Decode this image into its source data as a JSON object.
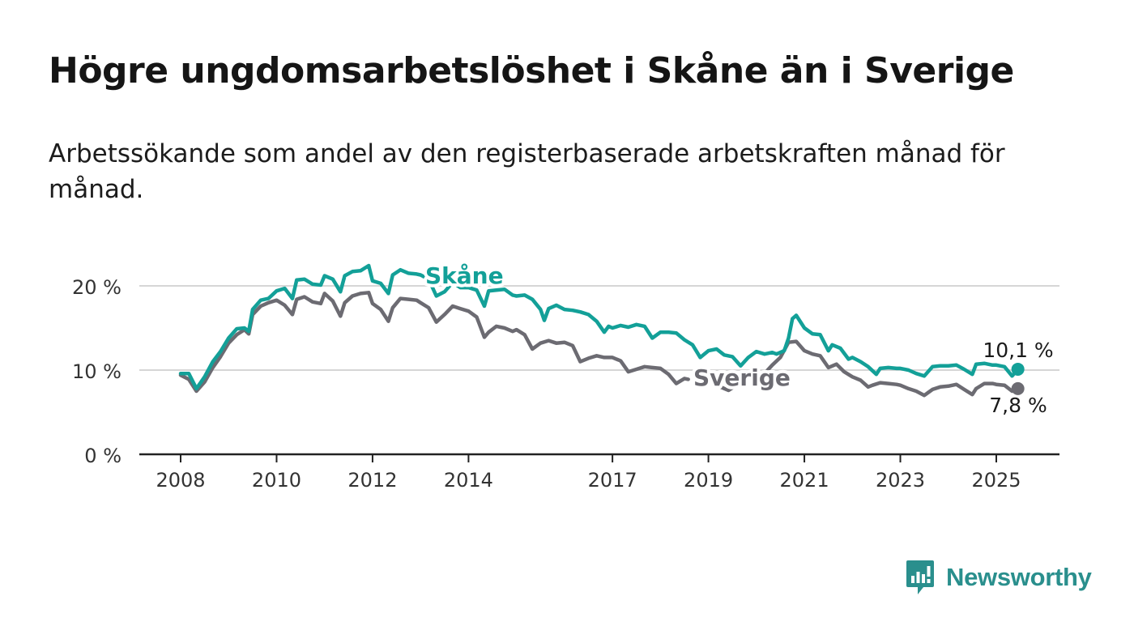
{
  "header": {
    "title": "Högre ungdomsarbetslöshet i Skåne än i Sverige",
    "subtitle": "Arbetssökande som andel av den registerbaserade arbetskraften månad för månad."
  },
  "brand": {
    "name": "Newsworthy",
    "color": "#2a8f8d",
    "icon": "bar-chart-speech-bubble-icon"
  },
  "chart_data": {
    "type": "line",
    "ylim": [
      0,
      24
    ],
    "y_ticks": [
      0,
      10,
      20
    ],
    "y_tick_labels": [
      "0 %",
      "10 %",
      "20 %"
    ],
    "x_ticks": [
      2008,
      2010,
      2012,
      2014,
      2017,
      2019,
      2021,
      2023,
      2025
    ],
    "x_tick_labels": [
      "2008",
      "2010",
      "2012",
      "2014",
      "2017",
      "2019",
      "2021",
      "2023",
      "2025"
    ],
    "grid": true,
    "series": [
      {
        "name": "Skåne",
        "color": "#13a098",
        "last_label": "10,1 %",
        "points": [
          [
            2008.0,
            9.6
          ],
          [
            2008.17,
            9.6
          ],
          [
            2008.33,
            7.8
          ],
          [
            2008.5,
            9.2
          ],
          [
            2008.67,
            11.0
          ],
          [
            2008.83,
            12.2
          ],
          [
            2009.0,
            13.8
          ],
          [
            2009.17,
            14.9
          ],
          [
            2009.33,
            15.0
          ],
          [
            2009.42,
            14.6
          ],
          [
            2009.5,
            17.2
          ],
          [
            2009.67,
            18.3
          ],
          [
            2009.83,
            18.5
          ],
          [
            2010.0,
            19.4
          ],
          [
            2010.17,
            19.7
          ],
          [
            2010.33,
            18.5
          ],
          [
            2010.42,
            20.7
          ],
          [
            2010.58,
            20.8
          ],
          [
            2010.75,
            20.2
          ],
          [
            2010.92,
            20.1
          ],
          [
            2011.0,
            21.2
          ],
          [
            2011.17,
            20.8
          ],
          [
            2011.33,
            19.3
          ],
          [
            2011.42,
            21.2
          ],
          [
            2011.58,
            21.7
          ],
          [
            2011.75,
            21.8
          ],
          [
            2011.92,
            22.4
          ],
          [
            2012.0,
            20.6
          ],
          [
            2012.17,
            20.3
          ],
          [
            2012.33,
            19.1
          ],
          [
            2012.42,
            21.3
          ],
          [
            2012.58,
            21.9
          ],
          [
            2012.75,
            21.5
          ],
          [
            2012.92,
            21.4
          ],
          [
            2013.0,
            21.3
          ],
          [
            2013.17,
            20.8
          ],
          [
            2013.33,
            18.8
          ],
          [
            2013.5,
            19.3
          ],
          [
            2013.67,
            20.4
          ],
          [
            2013.83,
            19.8
          ],
          [
            2014.0,
            19.8
          ],
          [
            2014.17,
            19.5
          ],
          [
            2014.33,
            17.6
          ],
          [
            2014.42,
            19.4
          ],
          [
            2014.58,
            19.5
          ],
          [
            2014.75,
            19.6
          ],
          [
            2014.92,
            18.9
          ],
          [
            2015.0,
            18.8
          ],
          [
            2015.17,
            18.9
          ],
          [
            2015.33,
            18.4
          ],
          [
            2015.5,
            17.2
          ],
          [
            2015.58,
            15.9
          ],
          [
            2015.67,
            17.3
          ],
          [
            2015.83,
            17.7
          ],
          [
            2016.0,
            17.2
          ],
          [
            2016.17,
            17.1
          ],
          [
            2016.33,
            16.9
          ],
          [
            2016.5,
            16.6
          ],
          [
            2016.67,
            15.8
          ],
          [
            2016.83,
            14.5
          ],
          [
            2016.92,
            15.2
          ],
          [
            2017.0,
            15.0
          ],
          [
            2017.17,
            15.3
          ],
          [
            2017.33,
            15.1
          ],
          [
            2017.5,
            15.4
          ],
          [
            2017.67,
            15.2
          ],
          [
            2017.83,
            13.8
          ],
          [
            2018.0,
            14.5
          ],
          [
            2018.17,
            14.5
          ],
          [
            2018.33,
            14.4
          ],
          [
            2018.5,
            13.6
          ],
          [
            2018.67,
            13.0
          ],
          [
            2018.83,
            11.5
          ],
          [
            2019.0,
            12.3
          ],
          [
            2019.17,
            12.5
          ],
          [
            2019.33,
            11.8
          ],
          [
            2019.5,
            11.6
          ],
          [
            2019.67,
            10.5
          ],
          [
            2019.83,
            11.5
          ],
          [
            2020.0,
            12.2
          ],
          [
            2020.17,
            11.9
          ],
          [
            2020.33,
            12.1
          ],
          [
            2020.42,
            11.9
          ],
          [
            2020.58,
            12.3
          ],
          [
            2020.67,
            13.8
          ],
          [
            2020.75,
            16.1
          ],
          [
            2020.83,
            16.5
          ],
          [
            2021.0,
            15.0
          ],
          [
            2021.17,
            14.3
          ],
          [
            2021.33,
            14.2
          ],
          [
            2021.5,
            12.3
          ],
          [
            2021.58,
            13.0
          ],
          [
            2021.75,
            12.6
          ],
          [
            2021.92,
            11.3
          ],
          [
            2022.0,
            11.5
          ],
          [
            2022.17,
            11.0
          ],
          [
            2022.33,
            10.4
          ],
          [
            2022.5,
            9.5
          ],
          [
            2022.58,
            10.2
          ],
          [
            2022.75,
            10.3
          ],
          [
            2022.92,
            10.2
          ],
          [
            2023.0,
            10.2
          ],
          [
            2023.17,
            10.0
          ],
          [
            2023.33,
            9.6
          ],
          [
            2023.5,
            9.3
          ],
          [
            2023.67,
            10.4
          ],
          [
            2023.83,
            10.5
          ],
          [
            2024.0,
            10.5
          ],
          [
            2024.17,
            10.6
          ],
          [
            2024.33,
            10.1
          ],
          [
            2024.5,
            9.5
          ],
          [
            2024.58,
            10.7
          ],
          [
            2024.75,
            10.8
          ],
          [
            2024.92,
            10.6
          ],
          [
            2025.0,
            10.6
          ],
          [
            2025.17,
            10.4
          ],
          [
            2025.33,
            9.3
          ],
          [
            2025.45,
            10.1
          ]
        ]
      },
      {
        "name": "Sverige",
        "color": "#6c6b72",
        "last_label": "7,8 %",
        "points": [
          [
            2008.0,
            9.4
          ],
          [
            2008.17,
            8.9
          ],
          [
            2008.33,
            7.5
          ],
          [
            2008.5,
            8.6
          ],
          [
            2008.67,
            10.3
          ],
          [
            2008.83,
            11.6
          ],
          [
            2009.0,
            13.2
          ],
          [
            2009.17,
            14.2
          ],
          [
            2009.33,
            14.8
          ],
          [
            2009.42,
            14.3
          ],
          [
            2009.5,
            16.6
          ],
          [
            2009.67,
            17.6
          ],
          [
            2009.83,
            18.0
          ],
          [
            2010.0,
            18.3
          ],
          [
            2010.17,
            17.7
          ],
          [
            2010.33,
            16.6
          ],
          [
            2010.42,
            18.4
          ],
          [
            2010.58,
            18.7
          ],
          [
            2010.75,
            18.1
          ],
          [
            2010.92,
            17.9
          ],
          [
            2011.0,
            19.1
          ],
          [
            2011.17,
            18.2
          ],
          [
            2011.33,
            16.4
          ],
          [
            2011.42,
            18.0
          ],
          [
            2011.58,
            18.8
          ],
          [
            2011.75,
            19.1
          ],
          [
            2011.92,
            19.2
          ],
          [
            2012.0,
            17.9
          ],
          [
            2012.17,
            17.2
          ],
          [
            2012.33,
            15.8
          ],
          [
            2012.42,
            17.4
          ],
          [
            2012.58,
            18.5
          ],
          [
            2012.75,
            18.4
          ],
          [
            2012.92,
            18.3
          ],
          [
            2013.0,
            18.0
          ],
          [
            2013.17,
            17.4
          ],
          [
            2013.33,
            15.7
          ],
          [
            2013.5,
            16.6
          ],
          [
            2013.67,
            17.6
          ],
          [
            2013.83,
            17.3
          ],
          [
            2014.0,
            17.0
          ],
          [
            2014.17,
            16.3
          ],
          [
            2014.33,
            13.9
          ],
          [
            2014.42,
            14.5
          ],
          [
            2014.58,
            15.2
          ],
          [
            2014.75,
            15.0
          ],
          [
            2014.92,
            14.6
          ],
          [
            2015.0,
            14.8
          ],
          [
            2015.17,
            14.2
          ],
          [
            2015.33,
            12.5
          ],
          [
            2015.5,
            13.2
          ],
          [
            2015.67,
            13.5
          ],
          [
            2015.83,
            13.2
          ],
          [
            2016.0,
            13.3
          ],
          [
            2016.17,
            12.9
          ],
          [
            2016.33,
            11.0
          ],
          [
            2016.5,
            11.4
          ],
          [
            2016.67,
            11.7
          ],
          [
            2016.83,
            11.5
          ],
          [
            2017.0,
            11.5
          ],
          [
            2017.17,
            11.1
          ],
          [
            2017.33,
            9.8
          ],
          [
            2017.5,
            10.1
          ],
          [
            2017.67,
            10.4
          ],
          [
            2017.83,
            10.3
          ],
          [
            2018.0,
            10.2
          ],
          [
            2018.17,
            9.5
          ],
          [
            2018.33,
            8.4
          ],
          [
            2018.5,
            9.0
          ],
          [
            2018.58,
            8.9
          ]
        ],
        "points_after_label": [
          [
            2019.25,
            8.0
          ],
          [
            2019.42,
            7.6
          ],
          [
            2019.58,
            8.2
          ]
        ],
        "points_tail": [
          [
            2020.0,
            9.0
          ],
          [
            2020.17,
            9.6
          ],
          [
            2020.33,
            10.6
          ],
          [
            2020.5,
            11.5
          ],
          [
            2020.67,
            13.3
          ],
          [
            2020.83,
            13.4
          ],
          [
            2021.0,
            12.3
          ],
          [
            2021.17,
            11.9
          ],
          [
            2021.33,
            11.7
          ],
          [
            2021.5,
            10.3
          ],
          [
            2021.67,
            10.7
          ],
          [
            2021.83,
            9.8
          ],
          [
            2022.0,
            9.2
          ],
          [
            2022.17,
            8.8
          ],
          [
            2022.33,
            8.0
          ],
          [
            2022.42,
            8.2
          ],
          [
            2022.58,
            8.5
          ],
          [
            2022.75,
            8.4
          ],
          [
            2022.92,
            8.3
          ],
          [
            2023.0,
            8.2
          ],
          [
            2023.17,
            7.8
          ],
          [
            2023.33,
            7.5
          ],
          [
            2023.5,
            7.0
          ],
          [
            2023.67,
            7.7
          ],
          [
            2023.83,
            8.0
          ],
          [
            2024.0,
            8.1
          ],
          [
            2024.17,
            8.3
          ],
          [
            2024.33,
            7.7
          ],
          [
            2024.5,
            7.1
          ],
          [
            2024.58,
            7.8
          ],
          [
            2024.75,
            8.4
          ],
          [
            2024.92,
            8.4
          ],
          [
            2025.0,
            8.3
          ],
          [
            2025.17,
            8.2
          ],
          [
            2025.33,
            7.5
          ],
          [
            2025.45,
            7.8
          ]
        ]
      }
    ]
  }
}
